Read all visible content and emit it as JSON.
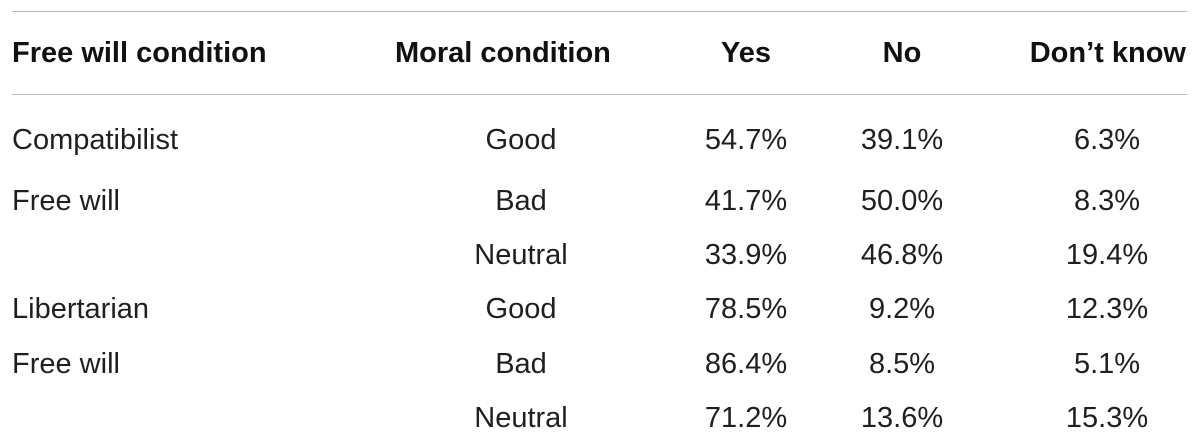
{
  "table": {
    "headers": [
      "Free will condition",
      "Moral condition",
      "Yes",
      "No",
      "Don’t know"
    ],
    "rows": [
      {
        "free_will": "Compatibilist",
        "moral": "Good",
        "yes": "54.7%",
        "no": "39.1%",
        "dont_know": "6.3%"
      },
      {
        "free_will": "Free will",
        "moral": "Bad",
        "yes": "41.7%",
        "no": "50.0%",
        "dont_know": "8.3%"
      },
      {
        "free_will": "",
        "moral": "Neutral",
        "yes": "33.9%",
        "no": "46.8%",
        "dont_know": "19.4%"
      },
      {
        "free_will": "Libertarian",
        "moral": "Good",
        "yes": "78.5%",
        "no": "9.2%",
        "dont_know": "12.3%"
      },
      {
        "free_will": "Free will",
        "moral": "Bad",
        "yes": "86.4%",
        "no": "8.5%",
        "dont_know": "5.1%"
      },
      {
        "free_will": "",
        "moral": "Neutral",
        "yes": "71.2%",
        "no": "13.6%",
        "dont_know": "15.3%"
      }
    ]
  }
}
